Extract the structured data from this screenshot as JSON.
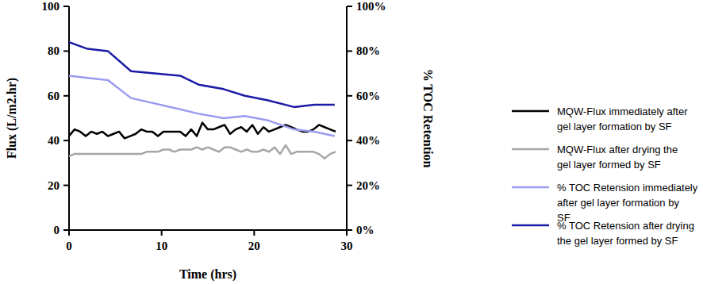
{
  "chart_data": {
    "type": "line",
    "x_label": "Time (hrs)",
    "y_label": "Flux (L/m2.hr)",
    "y2_label": "% TOC Retention",
    "xlim": [
      0,
      30
    ],
    "xticks": [
      0,
      10,
      20,
      30
    ],
    "ylim": [
      0,
      100
    ],
    "yticks": [
      0,
      20,
      40,
      60,
      80,
      100
    ],
    "y2lim": [
      0,
      100
    ],
    "y2ticks": [
      {
        "value": 0,
        "label": "0%"
      },
      {
        "value": 20,
        "label": "20%"
      },
      {
        "value": 40,
        "label": "40%"
      },
      {
        "value": 60,
        "label": "60%"
      },
      {
        "value": 80,
        "label": "80%"
      },
      {
        "value": 100,
        "label": "100%"
      }
    ],
    "grid": false,
    "legend": "right",
    "series": [
      {
        "name": "MQW-Flux immediately after gel layer formation by SF",
        "color": "#000000",
        "x": [
          0,
          0.6,
          1.2,
          1.8,
          2.4,
          3,
          3.6,
          4.2,
          4.8,
          5.4,
          6,
          6.6,
          7.2,
          7.8,
          8.4,
          9,
          9.6,
          10.2,
          10.8,
          11.4,
          12,
          12.6,
          13.2,
          13.8,
          14.4,
          15,
          15.6,
          16.2,
          16.8,
          17.4,
          18,
          18.6,
          19.2,
          19.8,
          20.4,
          21,
          21.6,
          22.2,
          22.8,
          23.4,
          24,
          24.6,
          25.2,
          25.8,
          26.4,
          27,
          27.6,
          28.2,
          28.8
        ],
        "values": [
          42,
          45,
          44,
          42,
          44,
          43,
          44,
          42,
          43,
          44,
          41,
          42,
          43,
          45,
          44,
          44,
          42,
          44,
          44,
          44,
          44,
          42,
          45,
          42,
          48,
          45,
          45,
          46,
          47,
          43,
          45,
          46,
          44,
          47,
          43,
          46,
          44,
          45,
          46,
          47,
          46,
          45,
          44,
          44,
          45,
          47,
          46,
          45,
          44
        ]
      },
      {
        "name": "MQW-Flux after drying the gel layer formed by SF",
        "color": "#a6a6a6",
        "x": [
          0,
          0.6,
          1.2,
          1.8,
          2.4,
          3,
          3.6,
          4.2,
          4.8,
          5.4,
          6,
          6.6,
          7.2,
          7.8,
          8.4,
          9,
          9.6,
          10.2,
          10.8,
          11.4,
          12,
          12.6,
          13.2,
          13.8,
          14.4,
          15,
          15.6,
          16.2,
          16.8,
          17.4,
          18,
          18.6,
          19.2,
          19.8,
          20.4,
          21,
          21.6,
          22.2,
          22.8,
          23.4,
          24,
          24.6,
          25.2,
          25.8,
          26.4,
          27,
          27.6,
          28.2,
          28.8
        ],
        "values": [
          33,
          34,
          34,
          34,
          34,
          34,
          34,
          34,
          34,
          34,
          34,
          34,
          34,
          34,
          35,
          35,
          35,
          36,
          36,
          35,
          36,
          36,
          36,
          37,
          36,
          37,
          36,
          35,
          37,
          37,
          36,
          35,
          36,
          35,
          35,
          36,
          35,
          37,
          34,
          38,
          34,
          35,
          35,
          35,
          35,
          34,
          32,
          34,
          35
        ]
      },
      {
        "name": "% TOC Retension immediately after gel layer formation by SF",
        "color": "#9b9bf0",
        "axis": "y2",
        "x": [
          0,
          2,
          4.2,
          6.7,
          12,
          14,
          16.7,
          19,
          21.5,
          24.3,
          26.5,
          28.7
        ],
        "values": [
          69,
          68,
          67,
          59,
          54,
          52,
          50,
          51,
          49,
          45,
          44,
          42
        ]
      },
      {
        "name": "% TOC Retension after drying the gel layer formed by SF",
        "color": "#1a1aa6",
        "axis": "y2",
        "x": [
          0,
          2,
          4.2,
          6.7,
          12,
          14,
          16.7,
          19,
          21.5,
          24.3,
          26.5,
          28.7
        ],
        "values": [
          84,
          81,
          80,
          71,
          69,
          65,
          63,
          60,
          58,
          55,
          56,
          56
        ]
      }
    ]
  }
}
